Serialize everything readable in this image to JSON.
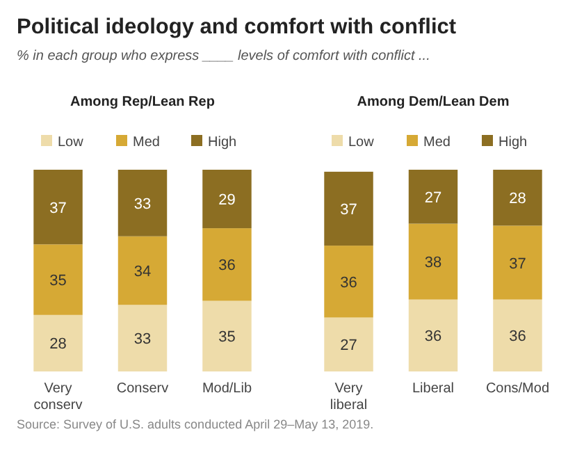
{
  "chart_data": [
    {
      "type": "other",
      "title": "Political ideology and comfort with conflict",
      "subtitle": "% in each group who express ____ levels of comfort with conflict ...",
      "annotations": [
        "Source: Survey of U.S. adults conducted April 29–May 13, 2019."
      ]
    },
    {
      "type": "bar",
      "stacked": true,
      "data_labels": true,
      "legend": "top",
      "title": "Among Rep/Lean Rep",
      "categories": [
        "Very conserv",
        "Conserv",
        "Mod/Lib"
      ],
      "series": [
        {
          "name": "Low",
          "color": "#eedcaa",
          "values": [
            28,
            33,
            35
          ]
        },
        {
          "name": "Med",
          "color": "#d6a935",
          "values": [
            35,
            34,
            36
          ]
        },
        {
          "name": "High",
          "color": "#8c6e22",
          "values": [
            37,
            33,
            29
          ]
        }
      ]
    },
    {
      "type": "bar",
      "stacked": true,
      "data_labels": true,
      "legend": "top",
      "title": "Among Dem/Lean Dem",
      "categories": [
        "Very liberal",
        "Liberal",
        "Cons/Mod"
      ],
      "series": [
        {
          "name": "Low",
          "color": "#eedcaa",
          "values": [
            27,
            36,
            36
          ]
        },
        {
          "name": "Med",
          "color": "#d6a935",
          "values": [
            36,
            38,
            37
          ]
        },
        {
          "name": "High",
          "color": "#8c6e22",
          "values": [
            37,
            27,
            28
          ]
        }
      ]
    }
  ]
}
